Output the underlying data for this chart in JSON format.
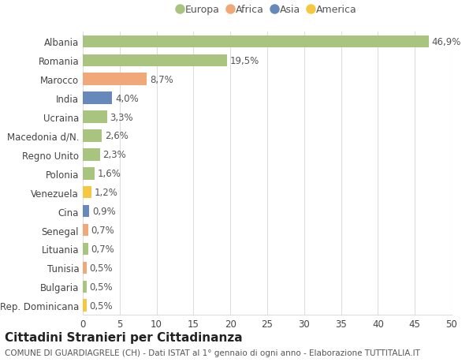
{
  "categories": [
    "Albania",
    "Romania",
    "Marocco",
    "India",
    "Ucraina",
    "Macedonia d/N.",
    "Regno Unito",
    "Polonia",
    "Venezuela",
    "Cina",
    "Senegal",
    "Lituania",
    "Tunisia",
    "Bulgaria",
    "Rep. Dominicana"
  ],
  "values": [
    46.9,
    19.5,
    8.7,
    4.0,
    3.3,
    2.6,
    2.3,
    1.6,
    1.2,
    0.9,
    0.7,
    0.7,
    0.5,
    0.5,
    0.5
  ],
  "labels": [
    "46,9%",
    "19,5%",
    "8,7%",
    "4,0%",
    "3,3%",
    "2,6%",
    "2,3%",
    "1,6%",
    "1,2%",
    "0,9%",
    "0,7%",
    "0,7%",
    "0,5%",
    "0,5%",
    "0,5%"
  ],
  "continents": [
    "Europa",
    "Europa",
    "Africa",
    "Asia",
    "Europa",
    "Europa",
    "Europa",
    "Europa",
    "America",
    "Asia",
    "Africa",
    "Europa",
    "Africa",
    "Europa",
    "America"
  ],
  "continent_colors": {
    "Europa": "#a8c47e",
    "Africa": "#f0a878",
    "Asia": "#6688bb",
    "America": "#f5c840"
  },
  "legend_order": [
    "Europa",
    "Africa",
    "Asia",
    "America"
  ],
  "xlim": [
    0,
    50
  ],
  "xticks": [
    0,
    5,
    10,
    15,
    20,
    25,
    30,
    35,
    40,
    45,
    50
  ],
  "title": "Cittadini Stranieri per Cittadinanza",
  "subtitle": "COMUNE DI GUARDIAGRELE (CH) - Dati ISTAT al 1° gennaio di ogni anno - Elaborazione TUTTITALIA.IT",
  "background_color": "#ffffff",
  "grid_color": "#dddddd",
  "bar_height": 0.65,
  "label_fontsize": 8.5,
  "tick_fontsize": 8.5,
  "title_fontsize": 11,
  "subtitle_fontsize": 7.5
}
